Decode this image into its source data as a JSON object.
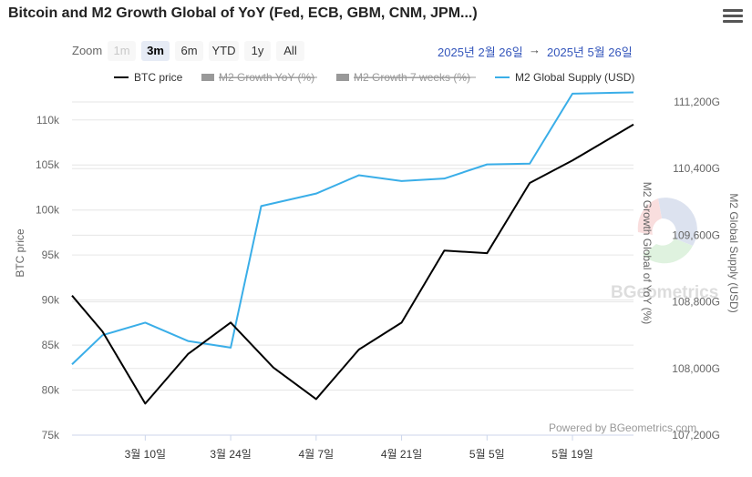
{
  "title": "Bitcoin and M2 Growth Global of YoY (Fed, ECB, GBM, CNM, JPM...)",
  "zoom": {
    "label": "Zoom",
    "buttons": [
      {
        "label": "1m",
        "state": "disabled"
      },
      {
        "label": "3m",
        "state": "active"
      },
      {
        "label": "6m",
        "state": "normal"
      },
      {
        "label": "YTD",
        "state": "normal"
      },
      {
        "label": "1y",
        "state": "normal"
      },
      {
        "label": "All",
        "state": "normal"
      }
    ]
  },
  "range": {
    "from": "2025년 2월 26일",
    "separator": "→",
    "to": "2025년 5월 26일"
  },
  "icons": {
    "menu": "hamburger-menu-icon"
  },
  "colors": {
    "btc": "#000000",
    "m2supply": "#3aaee8",
    "grid": "#e6e6e6",
    "hidden": "#999999"
  },
  "chart_data": {
    "type": "line",
    "title": "Bitcoin and M2 Growth Global of YoY (Fed, ECB, GBM, CNM, JPM...)",
    "x_tick_labels": [
      "3월 10일",
      "3월 24일",
      "4월 7일",
      "4월 21일",
      "5월 5일",
      "5월 19일"
    ],
    "x_tick_positions_days": [
      12,
      26,
      40,
      54,
      68,
      82
    ],
    "x_range_days": [
      0,
      92
    ],
    "left_axis": {
      "label": "BTC price",
      "range": [
        75000,
        112000
      ],
      "ticks": [
        75000,
        80000,
        85000,
        90000,
        95000,
        100000,
        105000,
        110000
      ],
      "tick_labels": [
        "75k",
        "80k",
        "85k",
        "90k",
        "95k",
        "100k",
        "105k",
        "110k"
      ]
    },
    "middle_axis": {
      "label": "M2 Growth Global of YoY (%)"
    },
    "right_axis": {
      "label": "M2 Global Supply (USD)",
      "range": [
        107200,
        111200
      ],
      "ticks": [
        107200,
        108000,
        108800,
        109600,
        110400,
        111200
      ],
      "tick_labels": [
        "107,200G",
        "108,000G",
        "108,800G",
        "109,600G",
        "110,400G",
        "111,200G"
      ]
    },
    "legend": [
      {
        "name": "BTC price",
        "visible": true
      },
      {
        "name": "M2 Growth YoY (%)",
        "visible": false
      },
      {
        "name": "M2 Growth 7 weeks (%)",
        "visible": false
      },
      {
        "name": "M2 Global Supply (USD)",
        "visible": true
      }
    ],
    "series": [
      {
        "name": "BTC price",
        "axis": "left",
        "x": [
          0,
          5,
          12,
          19,
          26,
          33,
          40,
          47,
          54,
          61,
          68,
          75,
          82,
          89,
          92
        ],
        "values": [
          90500,
          86500,
          78500,
          84000,
          87500,
          82500,
          79000,
          84500,
          87500,
          95500,
          95200,
          103000,
          105500,
          108300,
          109500
        ]
      },
      {
        "name": "M2 Global Supply (USD)",
        "axis": "right",
        "x": [
          0,
          5,
          12,
          19,
          26,
          31,
          40,
          47,
          54,
          61,
          68,
          75,
          82,
          89,
          92
        ],
        "values": [
          108050,
          108400,
          108550,
          108330,
          108250,
          109950,
          110100,
          110320,
          110250,
          110280,
          110450,
          110460,
          111300,
          111310,
          111315
        ]
      }
    ],
    "credit": "Powered by BGeometrics.com",
    "watermark": "BGeometrics"
  }
}
